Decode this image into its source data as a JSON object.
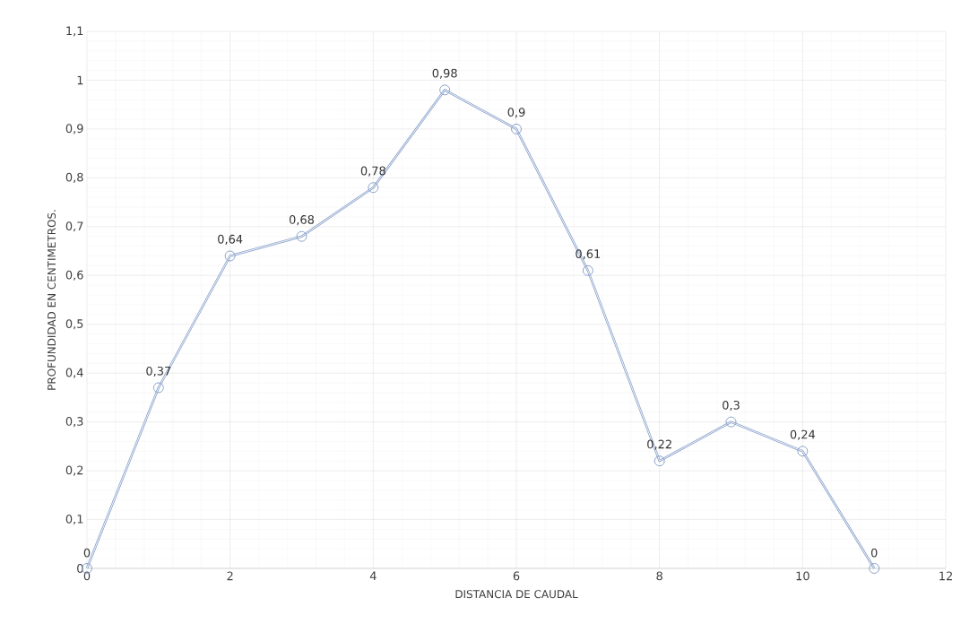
{
  "chart_data": {
    "type": "line",
    "xlabel": "DISTANCIA DE CAUDAL",
    "ylabel": "PROFUNDIDAD EN CENTIMETROS.",
    "x": [
      0,
      1,
      2,
      3,
      4,
      5,
      6,
      7,
      8,
      9,
      10,
      11
    ],
    "series": [
      {
        "color": "#8aa2cb",
        "values": [
          0,
          0.37,
          0.64,
          0.68,
          0.78,
          0.98,
          0.9,
          0.61,
          0.22,
          0.3,
          0.24,
          0
        ],
        "value_labels": [
          "0",
          "0,37",
          "0,64",
          "0,68",
          "0,78",
          "0,98",
          "0,9",
          "0,61",
          "0,22",
          "0,3",
          "0,24",
          "0"
        ]
      }
    ],
    "xlim": [
      0,
      12
    ],
    "xticks": [
      0,
      2,
      4,
      6,
      8,
      10,
      12
    ],
    "ylim": [
      0,
      1.1
    ],
    "yticks": [
      0,
      {
        "value": 0.1,
        "label": "0,1"
      },
      {
        "value": 0.2,
        "label": "0,2"
      },
      {
        "value": 0.3,
        "label": "0,3"
      },
      {
        "value": 0.4,
        "label": "0,4"
      },
      {
        "value": 0.5,
        "label": "0,5"
      },
      {
        "value": 0.6,
        "label": "0,6"
      },
      {
        "value": 0.7,
        "label": "0,7"
      },
      {
        "value": 0.8,
        "label": "0,8"
      },
      {
        "value": 0.9,
        "label": "0,9"
      },
      1,
      {
        "value": 1.1,
        "label": "1,1"
      }
    ],
    "grid": true,
    "marker": "circle",
    "line_style": "solid"
  }
}
